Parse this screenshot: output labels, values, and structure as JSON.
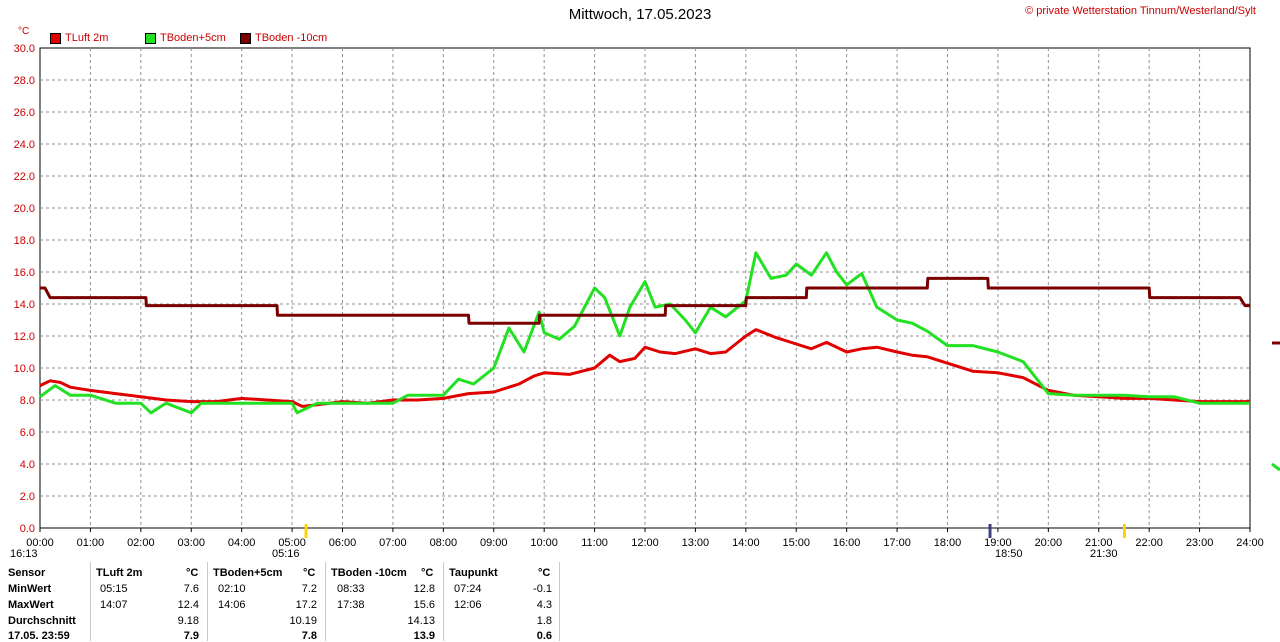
{
  "title": "Mittwoch, 17.05.2023",
  "copyright": "© private Wetterstation Tinnum/Westerland/Sylt",
  "unit": "°C",
  "colors": {
    "tluft": "#e00000",
    "tboden5": "#22e022",
    "tboden10": "#7a0000",
    "grid": "#909090"
  },
  "legend": [
    {
      "label": "TLuft 2m",
      "color": "#e00000"
    },
    {
      "label": "TBoden+5cm",
      "color": "#22e022"
    },
    {
      "label": "TBoden -10cm",
      "color": "#7a0000"
    }
  ],
  "markers": {
    "sunrise": "05:16",
    "sunset": "18:50",
    "moonrise": "21:30",
    "moonset": "16:13"
  },
  "chart_data": {
    "type": "line",
    "title": "Mittwoch, 17.05.2023",
    "ylabel": "°C",
    "ylim": [
      0,
      30
    ],
    "yticks": [
      "0.0",
      "2.0",
      "4.0",
      "6.0",
      "8.0",
      "10.0",
      "12.0",
      "14.0",
      "16.0",
      "18.0",
      "20.0",
      "22.0",
      "24.0",
      "26.0",
      "28.0",
      "30.0"
    ],
    "xlim": [
      0,
      24
    ],
    "xticks": [
      "00:00",
      "01:00",
      "02:00",
      "03:00",
      "04:00",
      "05:00",
      "06:00",
      "07:00",
      "08:00",
      "09:00",
      "10:00",
      "11:00",
      "12:00",
      "13:00",
      "14:00",
      "15:00",
      "16:00",
      "17:00",
      "18:00",
      "19:00",
      "20:00",
      "21:00",
      "22:00",
      "23:00",
      "24:00"
    ],
    "grid": true,
    "legend_position": "top-left",
    "series": [
      {
        "name": "TLuft 2m",
        "color": "#e00000",
        "x": [
          0,
          0.2,
          0.4,
          0.6,
          0.8,
          1.0,
          1.5,
          2.0,
          2.5,
          3.0,
          3.5,
          4.0,
          4.5,
          5.0,
          5.2,
          5.5,
          6.0,
          6.5,
          7.0,
          7.5,
          8.0,
          8.5,
          9.0,
          9.5,
          9.8,
          10.0,
          10.5,
          11.0,
          11.3,
          11.5,
          11.8,
          12.0,
          12.3,
          12.6,
          13.0,
          13.3,
          13.6,
          14.0,
          14.2,
          14.6,
          15.0,
          15.3,
          15.6,
          16.0,
          16.3,
          16.6,
          17.0,
          17.3,
          17.6,
          18.0,
          18.5,
          19.0,
          19.5,
          20.0,
          20.5,
          21.0,
          21.5,
          22.0,
          22.5,
          23.0,
          23.5,
          24.0
        ],
        "y": [
          8.9,
          9.2,
          9.1,
          8.8,
          8.7,
          8.6,
          8.4,
          8.2,
          8.0,
          7.9,
          7.9,
          8.1,
          8.0,
          7.9,
          7.6,
          7.7,
          7.9,
          7.8,
          8.0,
          8.0,
          8.1,
          8.4,
          8.5,
          9.0,
          9.5,
          9.7,
          9.6,
          10.0,
          10.8,
          10.4,
          10.6,
          11.3,
          11.0,
          10.9,
          11.2,
          10.9,
          11.0,
          12.0,
          12.4,
          11.9,
          11.5,
          11.2,
          11.6,
          11.0,
          11.2,
          11.3,
          11.0,
          10.8,
          10.7,
          10.3,
          9.8,
          9.7,
          9.4,
          8.6,
          8.3,
          8.2,
          8.1,
          8.1,
          8.0,
          7.9,
          7.9,
          7.9
        ]
      },
      {
        "name": "TBoden+5cm",
        "color": "#22e022",
        "x": [
          0,
          0.3,
          0.6,
          1.0,
          1.5,
          2.0,
          2.2,
          2.5,
          3.0,
          3.2,
          3.5,
          4.0,
          4.5,
          5.0,
          5.1,
          5.5,
          6.0,
          6.5,
          7.0,
          7.3,
          7.6,
          8.0,
          8.3,
          8.6,
          9.0,
          9.3,
          9.6,
          9.9,
          10.0,
          10.3,
          10.6,
          11.0,
          11.2,
          11.5,
          11.7,
          12.0,
          12.2,
          12.5,
          12.8,
          13.0,
          13.3,
          13.6,
          14.0,
          14.2,
          14.5,
          14.8,
          15.0,
          15.3,
          15.6,
          15.8,
          16.0,
          16.3,
          16.6,
          17.0,
          17.3,
          17.6,
          18.0,
          18.5,
          19.0,
          19.5,
          20.0,
          20.5,
          21.0,
          21.5,
          22.0,
          22.5,
          23.0,
          23.5,
          24.0
        ],
        "y": [
          8.2,
          8.9,
          8.3,
          8.3,
          7.8,
          7.8,
          7.2,
          7.8,
          7.2,
          7.8,
          7.8,
          7.8,
          7.8,
          7.8,
          7.2,
          7.8,
          7.8,
          7.8,
          7.8,
          8.3,
          8.3,
          8.3,
          9.3,
          9.0,
          10.0,
          12.5,
          11.0,
          13.5,
          12.2,
          11.8,
          12.6,
          15.0,
          14.4,
          12.0,
          13.8,
          15.4,
          13.8,
          14.0,
          13.0,
          12.2,
          13.8,
          13.2,
          14.2,
          17.2,
          15.6,
          15.8,
          16.5,
          15.8,
          17.2,
          16.0,
          15.2,
          15.9,
          13.8,
          13.0,
          12.8,
          12.3,
          11.4,
          11.4,
          11.0,
          10.4,
          8.4,
          8.3,
          8.3,
          8.3,
          8.2,
          8.2,
          7.8,
          7.8,
          7.8
        ]
      },
      {
        "name": "TBoden -10cm",
        "color": "#7a0000",
        "x": [
          0,
          0.1,
          0.2,
          2.1,
          2.11,
          4.7,
          4.71,
          8.5,
          8.51,
          9.9,
          9.91,
          12.4,
          12.41,
          14.0,
          14.01,
          15.2,
          15.21,
          17.6,
          17.61,
          18.8,
          18.81,
          22.0,
          22.01,
          23.8,
          23.9,
          24.0
        ],
        "y": [
          15.0,
          15.0,
          14.4,
          14.4,
          13.9,
          13.9,
          13.3,
          13.3,
          12.8,
          12.8,
          13.3,
          13.3,
          13.9,
          13.9,
          14.4,
          14.4,
          15.0,
          15.0,
          15.6,
          15.6,
          15.0,
          15.0,
          14.4,
          14.4,
          13.9,
          13.9
        ]
      }
    ]
  },
  "stats": {
    "headers": {
      "sensor": "Sensor",
      "tluft": "TLuft 2m",
      "tluft_unit": "°C",
      "tb5": "TBoden+5cm",
      "tb5_unit": "°C",
      "tb10": "TBoden -10cm",
      "tb10_unit": "°C",
      "tau": "Taupunkt",
      "tau_unit": "°C"
    },
    "rows": [
      {
        "label": "MinWert",
        "tluft_time": "05:15",
        "tluft_val": "7.6",
        "tb5_time": "02:10",
        "tb5_val": "7.2",
        "tb10_time": "08:33",
        "tb10_val": "12.8",
        "tau_time": "07:24",
        "tau_val": "-0.1"
      },
      {
        "label": "MaxWert",
        "tluft_time": "14:07",
        "tluft_val": "12.4",
        "tb5_time": "14:06",
        "tb5_val": "17.2",
        "tb10_time": "17:38",
        "tb10_val": "15.6",
        "tau_time": "12:06",
        "tau_val": "4.3"
      },
      {
        "label": "Durchschnitt",
        "tluft_time": "",
        "tluft_val": "9.18",
        "tb5_time": "",
        "tb5_val": "10.19",
        "tb10_time": "",
        "tb10_val": "14.13",
        "tau_time": "",
        "tau_val": "1.8"
      },
      {
        "label": "17.05. 23:59",
        "tluft_time": "",
        "tluft_val": "7.9",
        "tb5_time": "",
        "tb5_val": "7.8",
        "tb10_time": "",
        "tb10_val": "13.9",
        "tau_time": "",
        "tau_val": "0.6"
      }
    ]
  }
}
